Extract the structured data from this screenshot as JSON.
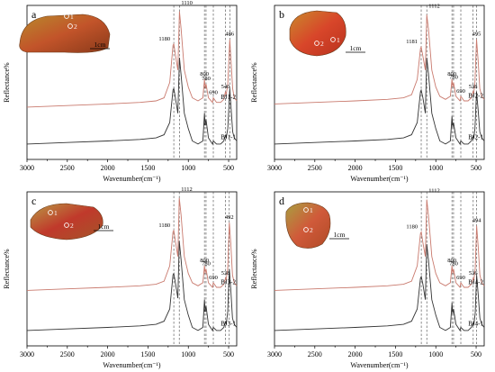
{
  "chart_data": [
    {
      "panel_label": "a",
      "type": "line",
      "xlabel": "Wavenumber(cm⁻¹)",
      "ylabel": "Reflectance%",
      "xlim": [
        3000,
        400
      ],
      "x_ticks": [
        3000,
        2500,
        2000,
        1500,
        1000,
        500
      ],
      "peak_labels": [
        {
          "text": "1180",
          "x": 1180,
          "series": 1
        },
        {
          "text": "1110",
          "x": 1110,
          "series": 1
        },
        {
          "text": "800",
          "x": 800,
          "series": 1
        },
        {
          "text": "780",
          "x": 780,
          "series": 1
        },
        {
          "text": "690",
          "x": 690,
          "series": 1
        },
        {
          "text": "540",
          "x": 540,
          "series": 1
        },
        {
          "text": "486",
          "x": 486,
          "series": 1
        }
      ],
      "guide_lines": [
        1180,
        1110,
        800,
        780,
        690,
        540,
        486
      ],
      "series": [
        {
          "name": "BJ1-1",
          "x": [
            3000,
            2500,
            2000,
            1600,
            1400,
            1300,
            1230,
            1190,
            1180,
            1160,
            1130,
            1110,
            1090,
            1050,
            1000,
            950,
            880,
            820,
            800,
            790,
            780,
            750,
            700,
            690,
            650,
            600,
            560,
            540,
            530,
            510,
            486,
            470,
            450,
            430,
            400
          ],
          "y": [
            0.1,
            0.11,
            0.12,
            0.13,
            0.14,
            0.16,
            0.24,
            0.45,
            0.46,
            0.4,
            0.3,
            0.66,
            0.55,
            0.3,
            0.2,
            0.12,
            0.1,
            0.12,
            0.3,
            0.22,
            0.26,
            0.14,
            0.1,
            0.12,
            0.1,
            0.1,
            0.12,
            0.16,
            0.14,
            0.2,
            0.46,
            0.34,
            0.18,
            0.14,
            0.12
          ]
        },
        {
          "name": "BJ1-2",
          "x": [
            3000,
            2500,
            2000,
            1600,
            1400,
            1300,
            1230,
            1190,
            1180,
            1160,
            1130,
            1110,
            1090,
            1050,
            1000,
            950,
            880,
            820,
            800,
            790,
            780,
            750,
            700,
            690,
            650,
            600,
            560,
            540,
            530,
            510,
            486,
            470,
            450,
            430,
            400
          ],
          "y": [
            0.34,
            0.35,
            0.36,
            0.37,
            0.38,
            0.4,
            0.5,
            0.74,
            0.75,
            0.68,
            0.58,
            0.96,
            0.85,
            0.58,
            0.47,
            0.4,
            0.38,
            0.4,
            0.52,
            0.46,
            0.49,
            0.4,
            0.37,
            0.4,
            0.37,
            0.37,
            0.39,
            0.44,
            0.42,
            0.49,
            0.78,
            0.64,
            0.46,
            0.4,
            0.38
          ]
        }
      ]
    },
    {
      "panel_label": "b",
      "type": "line",
      "xlabel": "Wavenumber(cm⁻¹)",
      "ylabel": "Reflectance%",
      "xlim": [
        3000,
        400
      ],
      "x_ticks": [
        3000,
        2500,
        2000,
        1500,
        1000,
        500
      ],
      "peak_labels": [
        {
          "text": "1181",
          "x": 1181,
          "series": 1
        },
        {
          "text": "1112",
          "x": 1112,
          "series": 1
        },
        {
          "text": "800",
          "x": 800,
          "series": 1
        },
        {
          "text": "780",
          "x": 780,
          "series": 1
        },
        {
          "text": "690",
          "x": 690,
          "series": 1
        },
        {
          "text": "538",
          "x": 538,
          "series": 1
        },
        {
          "text": "495",
          "x": 495,
          "series": 1
        }
      ],
      "guide_lines": [
        1181,
        1112,
        800,
        780,
        690,
        538,
        495
      ],
      "series": [
        {
          "name": "BJ2-1",
          "x": [
            3000,
            2500,
            2000,
            1600,
            1400,
            1300,
            1230,
            1190,
            1181,
            1160,
            1130,
            1112,
            1090,
            1050,
            1000,
            950,
            880,
            820,
            800,
            790,
            780,
            750,
            700,
            690,
            650,
            600,
            560,
            538,
            530,
            515,
            495,
            475,
            455,
            430,
            400
          ],
          "y": [
            0.1,
            0.11,
            0.12,
            0.13,
            0.14,
            0.16,
            0.24,
            0.44,
            0.45,
            0.4,
            0.3,
            0.66,
            0.55,
            0.3,
            0.2,
            0.12,
            0.1,
            0.12,
            0.28,
            0.21,
            0.24,
            0.14,
            0.1,
            0.12,
            0.1,
            0.1,
            0.12,
            0.15,
            0.14,
            0.2,
            0.44,
            0.32,
            0.18,
            0.14,
            0.12
          ]
        },
        {
          "name": "BJ2-2",
          "x": [
            3000,
            2500,
            2000,
            1600,
            1400,
            1300,
            1230,
            1190,
            1181,
            1160,
            1130,
            1112,
            1090,
            1050,
            1000,
            950,
            880,
            820,
            800,
            790,
            780,
            750,
            700,
            690,
            650,
            600,
            560,
            538,
            530,
            515,
            495,
            475,
            455,
            430,
            400
          ],
          "y": [
            0.36,
            0.37,
            0.38,
            0.39,
            0.4,
            0.42,
            0.52,
            0.72,
            0.73,
            0.67,
            0.58,
            0.94,
            0.84,
            0.58,
            0.47,
            0.41,
            0.39,
            0.41,
            0.52,
            0.47,
            0.5,
            0.41,
            0.38,
            0.41,
            0.38,
            0.38,
            0.4,
            0.44,
            0.43,
            0.5,
            0.78,
            0.64,
            0.46,
            0.41,
            0.39
          ]
        }
      ]
    },
    {
      "panel_label": "c",
      "type": "line",
      "xlabel": "Wavenumber(cm⁻¹)",
      "ylabel": "Reflectance%",
      "xlim": [
        3000,
        400
      ],
      "x_ticks": [
        3000,
        2500,
        2000,
        1500,
        1000,
        500
      ],
      "peak_labels": [
        {
          "text": "1180",
          "x": 1180,
          "series": 1
        },
        {
          "text": "1112",
          "x": 1112,
          "series": 1
        },
        {
          "text": "800",
          "x": 800,
          "series": 1
        },
        {
          "text": "780",
          "x": 780,
          "series": 1
        },
        {
          "text": "690",
          "x": 690,
          "series": 1
        },
        {
          "text": "538",
          "x": 538,
          "series": 1
        },
        {
          "text": "492",
          "x": 492,
          "series": 1
        }
      ],
      "guide_lines": [
        1180,
        1112,
        800,
        780,
        690,
        538,
        492
      ],
      "series": [
        {
          "name": "BJ3-1",
          "x": [
            3000,
            2500,
            2000,
            1600,
            1400,
            1300,
            1230,
            1190,
            1180,
            1160,
            1130,
            1112,
            1090,
            1050,
            1000,
            950,
            880,
            820,
            800,
            790,
            780,
            750,
            700,
            690,
            650,
            600,
            560,
            538,
            530,
            512,
            492,
            472,
            452,
            430,
            400
          ],
          "y": [
            0.1,
            0.11,
            0.12,
            0.13,
            0.14,
            0.16,
            0.24,
            0.46,
            0.47,
            0.41,
            0.31,
            0.68,
            0.56,
            0.3,
            0.2,
            0.12,
            0.1,
            0.12,
            0.3,
            0.22,
            0.26,
            0.14,
            0.1,
            0.12,
            0.1,
            0.1,
            0.12,
            0.16,
            0.14,
            0.22,
            0.5,
            0.36,
            0.18,
            0.14,
            0.12
          ]
        },
        {
          "name": "BJ3-2",
          "x": [
            3000,
            2500,
            2000,
            1600,
            1400,
            1300,
            1230,
            1190,
            1180,
            1160,
            1130,
            1112,
            1090,
            1050,
            1000,
            950,
            880,
            820,
            800,
            790,
            780,
            750,
            700,
            690,
            650,
            600,
            560,
            538,
            530,
            512,
            492,
            472,
            452,
            430,
            400
          ],
          "y": [
            0.36,
            0.37,
            0.38,
            0.39,
            0.4,
            0.42,
            0.52,
            0.74,
            0.75,
            0.68,
            0.58,
            0.96,
            0.85,
            0.58,
            0.47,
            0.41,
            0.39,
            0.41,
            0.52,
            0.47,
            0.5,
            0.41,
            0.38,
            0.41,
            0.38,
            0.38,
            0.4,
            0.44,
            0.43,
            0.5,
            0.8,
            0.66,
            0.46,
            0.41,
            0.39
          ]
        }
      ]
    },
    {
      "panel_label": "d",
      "type": "line",
      "xlabel": "Wavenumber(cm⁻¹)",
      "ylabel": "Reflectance%",
      "xlim": [
        3000,
        400
      ],
      "x_ticks": [
        3000,
        2500,
        2000,
        1500,
        1000,
        500
      ],
      "peak_labels": [
        {
          "text": "1180",
          "x": 1180,
          "series": 1
        },
        {
          "text": "1112",
          "x": 1112,
          "series": 1
        },
        {
          "text": "800",
          "x": 800,
          "series": 1
        },
        {
          "text": "780",
          "x": 780,
          "series": 1
        },
        {
          "text": "690",
          "x": 690,
          "series": 1
        },
        {
          "text": "536",
          "x": 536,
          "series": 1
        },
        {
          "text": "494",
          "x": 494,
          "series": 1
        }
      ],
      "guide_lines": [
        1180,
        1112,
        800,
        780,
        690,
        536,
        494
      ],
      "series": [
        {
          "name": "BJ4-1",
          "x": [
            3000,
            2500,
            2000,
            1600,
            1400,
            1300,
            1230,
            1190,
            1180,
            1160,
            1130,
            1112,
            1090,
            1050,
            1000,
            950,
            880,
            820,
            800,
            790,
            780,
            750,
            700,
            690,
            650,
            600,
            560,
            536,
            528,
            512,
            494,
            474,
            454,
            430,
            400
          ],
          "y": [
            0.1,
            0.11,
            0.12,
            0.13,
            0.14,
            0.16,
            0.24,
            0.44,
            0.45,
            0.4,
            0.3,
            0.66,
            0.55,
            0.3,
            0.2,
            0.12,
            0.1,
            0.12,
            0.28,
            0.21,
            0.24,
            0.14,
            0.1,
            0.12,
            0.1,
            0.1,
            0.12,
            0.15,
            0.14,
            0.21,
            0.46,
            0.33,
            0.18,
            0.14,
            0.12
          ]
        },
        {
          "name": "BJ4-2",
          "x": [
            3000,
            2500,
            2000,
            1600,
            1400,
            1300,
            1230,
            1190,
            1180,
            1160,
            1130,
            1112,
            1090,
            1050,
            1000,
            950,
            880,
            820,
            800,
            790,
            780,
            750,
            700,
            690,
            650,
            600,
            560,
            536,
            528,
            512,
            494,
            474,
            454,
            430,
            400
          ],
          "y": [
            0.36,
            0.37,
            0.38,
            0.39,
            0.4,
            0.42,
            0.52,
            0.73,
            0.74,
            0.67,
            0.58,
            0.95,
            0.84,
            0.58,
            0.47,
            0.41,
            0.39,
            0.41,
            0.52,
            0.47,
            0.5,
            0.41,
            0.38,
            0.41,
            0.38,
            0.38,
            0.4,
            0.44,
            0.43,
            0.5,
            0.78,
            0.64,
            0.46,
            0.41,
            0.39
          ]
        }
      ]
    }
  ],
  "insets": [
    {
      "panel": "a",
      "scale_label": "1cm",
      "points": [
        "1",
        "2"
      ],
      "colors": [
        "#8a3a1a",
        "#c2542a",
        "#b88a2c"
      ]
    },
    {
      "panel": "b",
      "scale_label": "1cm",
      "points": [
        "1",
        "2"
      ],
      "colors": [
        "#b8321e",
        "#d8462a",
        "#c98a2c"
      ]
    },
    {
      "panel": "c",
      "scale_label": "1cm",
      "points": [
        "1",
        "2"
      ],
      "colors": [
        "#a4552a",
        "#c0392b",
        "#b89a44"
      ]
    },
    {
      "panel": "d",
      "scale_label": "1cm",
      "points": [
        "1",
        "2"
      ],
      "colors": [
        "#b04a26",
        "#d05a3a",
        "#a8a040"
      ]
    }
  ],
  "colors": {
    "series_1": "#333333",
    "series_2": "#c97a6e"
  }
}
